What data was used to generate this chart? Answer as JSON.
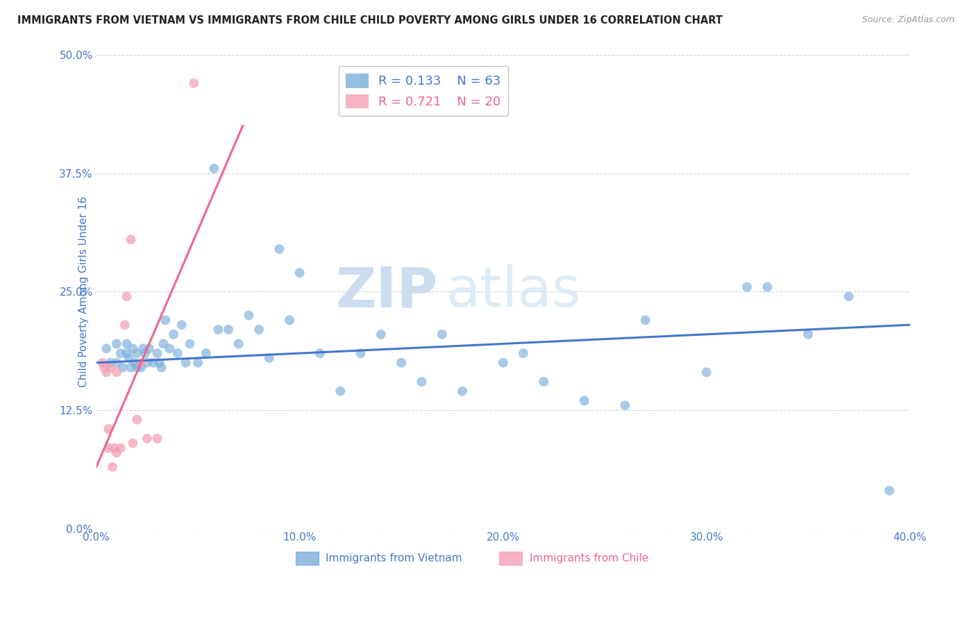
{
  "title": "IMMIGRANTS FROM VIETNAM VS IMMIGRANTS FROM CHILE CHILD POVERTY AMONG GIRLS UNDER 16 CORRELATION CHART",
  "source": "Source: ZipAtlas.com",
  "ylabel": "Child Poverty Among Girls Under 16",
  "legend_blue_label": "Immigrants from Vietnam",
  "legend_pink_label": "Immigrants from Chile",
  "blue_R": 0.133,
  "blue_N": 63,
  "pink_R": 0.721,
  "pink_N": 20,
  "xlim": [
    0.0,
    0.4
  ],
  "ylim": [
    0.0,
    0.5
  ],
  "xticks": [
    0.0,
    0.1,
    0.2,
    0.3,
    0.4
  ],
  "xtick_labels": [
    "0.0%",
    "10.0%",
    "20.0%",
    "30.0%",
    "40.0%"
  ],
  "yticks": [
    0.0,
    0.125,
    0.25,
    0.375,
    0.5
  ],
  "ytick_labels": [
    "0.0%",
    "12.5%",
    "25.0%",
    "37.5%",
    "50.0%"
  ],
  "background_color": "#ffffff",
  "grid_color": "#cccccc",
  "watermark_zip": "ZIP",
  "watermark_atlas": "atlas",
  "blue_color": "#7aaedd",
  "pink_color": "#f4a0b5",
  "blue_line_color": "#4477cc",
  "pink_line_color": "#ee6688",
  "title_color": "#222222",
  "axis_label_color": "#4477cc",
  "right_tick_color": "#4477cc",
  "blue_scatter_x": [
    0.005,
    0.007,
    0.01,
    0.01,
    0.012,
    0.013,
    0.015,
    0.015,
    0.016,
    0.017,
    0.018,
    0.019,
    0.02,
    0.02,
    0.022,
    0.023,
    0.024,
    0.025,
    0.026,
    0.028,
    0.03,
    0.031,
    0.032,
    0.033,
    0.034,
    0.036,
    0.038,
    0.04,
    0.042,
    0.044,
    0.046,
    0.05,
    0.054,
    0.058,
    0.06,
    0.065,
    0.07,
    0.075,
    0.08,
    0.085,
    0.09,
    0.095,
    0.1,
    0.11,
    0.12,
    0.13,
    0.14,
    0.15,
    0.16,
    0.17,
    0.18,
    0.2,
    0.21,
    0.22,
    0.24,
    0.26,
    0.27,
    0.3,
    0.32,
    0.33,
    0.35,
    0.37,
    0.39
  ],
  "blue_scatter_y": [
    0.19,
    0.175,
    0.195,
    0.175,
    0.185,
    0.17,
    0.195,
    0.185,
    0.18,
    0.17,
    0.19,
    0.175,
    0.185,
    0.17,
    0.17,
    0.19,
    0.185,
    0.175,
    0.19,
    0.175,
    0.185,
    0.175,
    0.17,
    0.195,
    0.22,
    0.19,
    0.205,
    0.185,
    0.215,
    0.175,
    0.195,
    0.175,
    0.185,
    0.38,
    0.21,
    0.21,
    0.195,
    0.225,
    0.21,
    0.18,
    0.295,
    0.22,
    0.27,
    0.185,
    0.145,
    0.185,
    0.205,
    0.175,
    0.155,
    0.205,
    0.145,
    0.175,
    0.185,
    0.155,
    0.135,
    0.13,
    0.22,
    0.165,
    0.255,
    0.255,
    0.205,
    0.245,
    0.04
  ],
  "pink_scatter_x": [
    0.003,
    0.004,
    0.005,
    0.006,
    0.006,
    0.007,
    0.008,
    0.009,
    0.01,
    0.01,
    0.012,
    0.014,
    0.015,
    0.017,
    0.018,
    0.02,
    0.022,
    0.025,
    0.03,
    0.048
  ],
  "pink_scatter_y": [
    0.175,
    0.17,
    0.165,
    0.105,
    0.085,
    0.17,
    0.065,
    0.085,
    0.08,
    0.165,
    0.085,
    0.215,
    0.245,
    0.305,
    0.09,
    0.115,
    0.175,
    0.095,
    0.095,
    0.47
  ],
  "blue_line_x": [
    0.0,
    0.4
  ],
  "blue_line_y": [
    0.175,
    0.215
  ],
  "pink_line_x": [
    -0.005,
    0.072
  ],
  "pink_line_y": [
    0.04,
    0.425
  ]
}
